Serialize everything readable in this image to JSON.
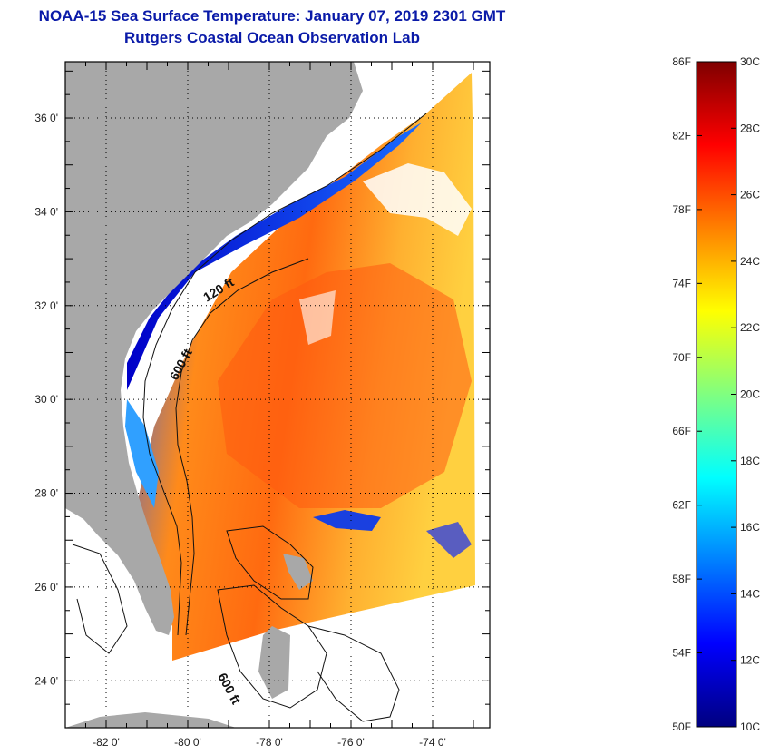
{
  "header": {
    "title": "NOAA-15 Sea Surface Temperature:  January 07, 2019 2301 GMT",
    "subtitle": "Rutgers Coastal Ocean Observation Lab",
    "title_color": "#0a1aa8"
  },
  "map": {
    "latitude_labels": [
      "36 0'",
      "34 0'",
      "32 0'",
      "30 0'",
      "28 0'",
      "26 0'",
      "24 0'"
    ],
    "longitude_labels": [
      "-82 0'",
      "-80 0'",
      "-78 0'",
      "-76 0'",
      "-74 0'"
    ],
    "latitude_values": [
      36,
      34,
      32,
      30,
      28,
      26,
      24
    ],
    "longitude_values": [
      -82,
      -80,
      -78,
      -76,
      -74
    ],
    "lat_range": [
      23.0,
      37.2
    ],
    "lon_range": [
      -83.0,
      -72.6
    ],
    "contour_labels": [
      "120 ft",
      "600 ft",
      "600 ft"
    ],
    "colors": {
      "land": "#a8a8a8",
      "ocean_cold": "#0000c0",
      "ocean_warm": "#ff5a00",
      "cloud": "#ffffff"
    }
  },
  "colorbar": {
    "fahrenheit_labels": [
      "86F",
      "82F",
      "78F",
      "74F",
      "70F",
      "66F",
      "62F",
      "58F",
      "54F",
      "50F"
    ],
    "fahrenheit_values": [
      86,
      82,
      78,
      74,
      70,
      66,
      62,
      58,
      54,
      50
    ],
    "celsius_labels": [
      "30C",
      "28C",
      "26C",
      "24C",
      "22C",
      "20C",
      "18C",
      "16C",
      "14C",
      "12C",
      "10C"
    ],
    "celsius_values": [
      30,
      28,
      26,
      24,
      22,
      20,
      18,
      16,
      14,
      12,
      10
    ],
    "range_c": [
      10,
      30
    ],
    "gradient_colors": [
      "#00007f",
      "#0000ff",
      "#0080ff",
      "#00ffff",
      "#80ff80",
      "#ffff00",
      "#ff8000",
      "#ff0000",
      "#7f0000"
    ]
  }
}
